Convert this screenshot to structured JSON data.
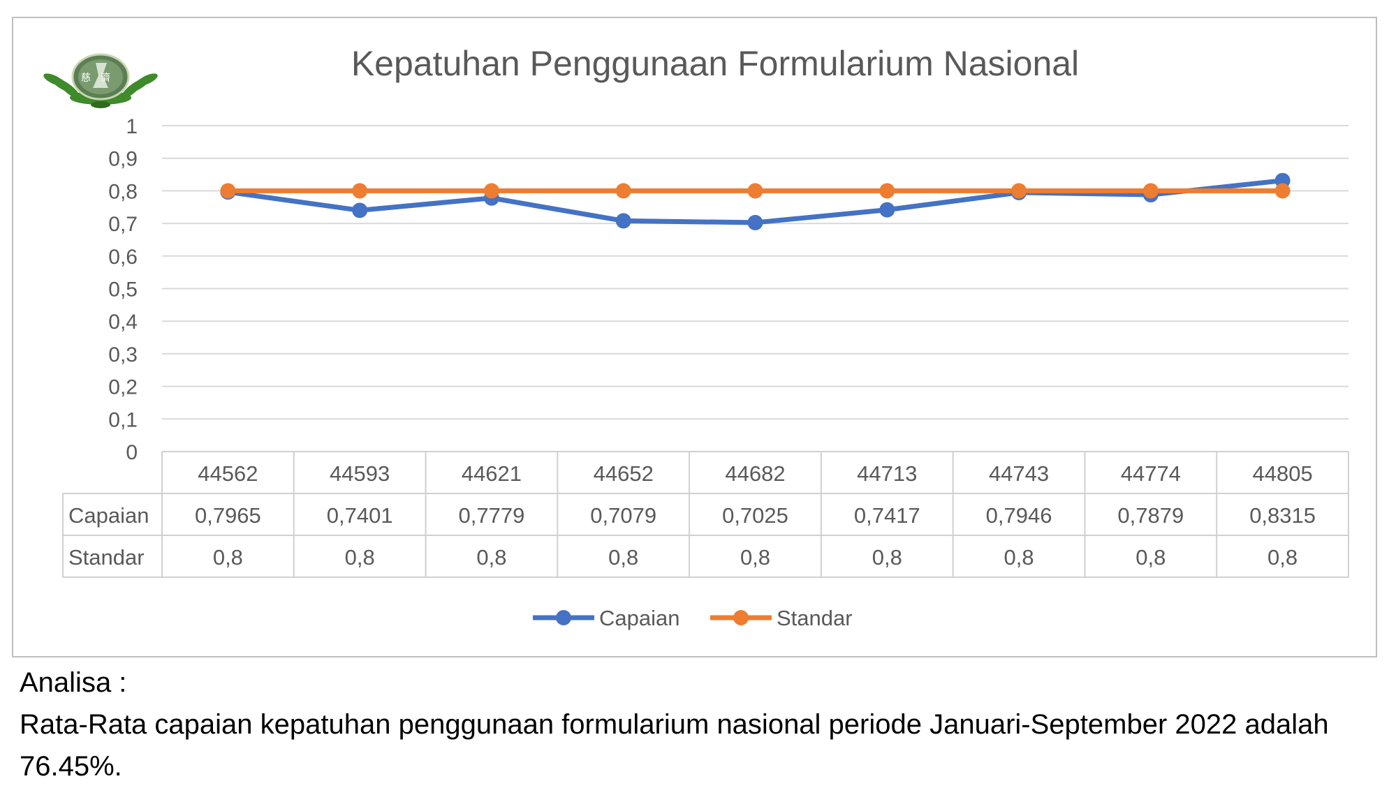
{
  "chart_data": {
    "type": "line",
    "title": "Kepatuhan Penggunaan Formularium Nasional",
    "categories": [
      "44562",
      "44593",
      "44621",
      "44652",
      "44682",
      "44713",
      "44743",
      "44774",
      "44805"
    ],
    "series": [
      {
        "name": "Capaian",
        "color": "#4472c4",
        "values": [
          0.7965,
          0.7401,
          0.7779,
          0.7079,
          0.7025,
          0.7417,
          0.7946,
          0.7879,
          0.8315
        ],
        "labels": [
          "0,7965",
          "0,7401",
          "0,7779",
          "0,7079",
          "0,7025",
          "0,7417",
          "0,7946",
          "0,7879",
          "0,8315"
        ]
      },
      {
        "name": "Standar",
        "color": "#ed7d31",
        "values": [
          0.8,
          0.8,
          0.8,
          0.8,
          0.8,
          0.8,
          0.8,
          0.8,
          0.8
        ],
        "labels": [
          "0,8",
          "0,8",
          "0,8",
          "0,8",
          "0,8",
          "0,8",
          "0,8",
          "0,8",
          "0,8"
        ]
      }
    ],
    "yticks": [
      "0",
      "0,1",
      "0,2",
      "0,3",
      "0,4",
      "0,5",
      "0,6",
      "0,7",
      "0,8",
      "0,9",
      "1"
    ],
    "ylim": [
      0,
      1
    ],
    "grid": true,
    "data_table": true,
    "legend": "bottom"
  },
  "logo": {
    "icon": "lotus-emblem-logo",
    "characters": "慈濟"
  },
  "analysis": {
    "heading": "Analisa :",
    "text": "Rata-Rata capaian kepatuhan penggunaan formularium nasional periode Januari-September 2022 adalah 76.45%."
  }
}
